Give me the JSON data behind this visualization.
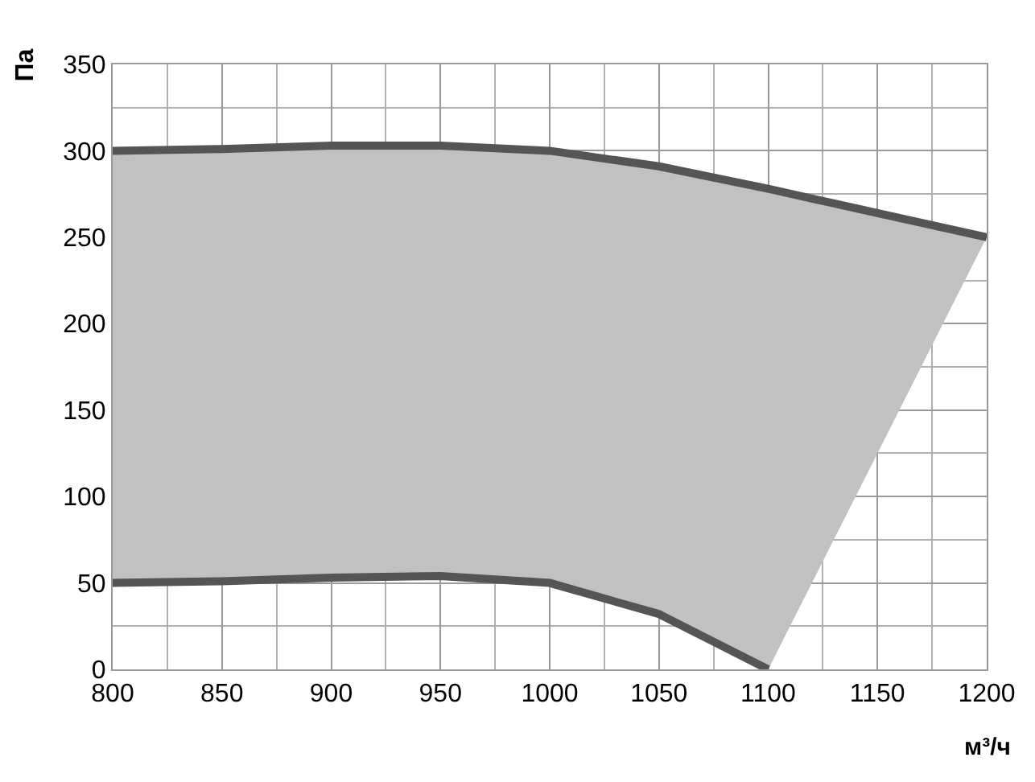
{
  "chart_data": {
    "type": "line",
    "xlabel": "м³/ч",
    "ylabel": "Па",
    "xlim": [
      800,
      1200
    ],
    "xticks": [
      800,
      850,
      900,
      950,
      1000,
      1050,
      1100,
      1150,
      1200
    ],
    "ylim": [
      0,
      350
    ],
    "yticks": [
      0,
      50,
      100,
      150,
      200,
      250,
      300,
      350
    ],
    "grid": true,
    "series": [
      {
        "color": "#555555",
        "x": [
          800,
          850,
          900,
          950,
          1000,
          1050,
          1100,
          1150,
          1200
        ],
        "values": [
          300,
          301,
          303,
          303,
          300,
          291,
          278,
          264,
          250
        ],
        "lower": [
          50,
          51,
          53,
          54,
          50,
          32,
          0,
          125,
          250
        ],
        "upper": [
          300,
          301,
          303,
          303,
          300,
          291,
          278,
          264,
          250
        ]
      },
      {
        "color": "#555555",
        "x": [
          800,
          850,
          900,
          950,
          1000,
          1050,
          1075,
          1100
        ],
        "values": [
          50,
          51,
          53,
          54,
          50,
          32,
          16,
          0
        ]
      }
    ]
  }
}
